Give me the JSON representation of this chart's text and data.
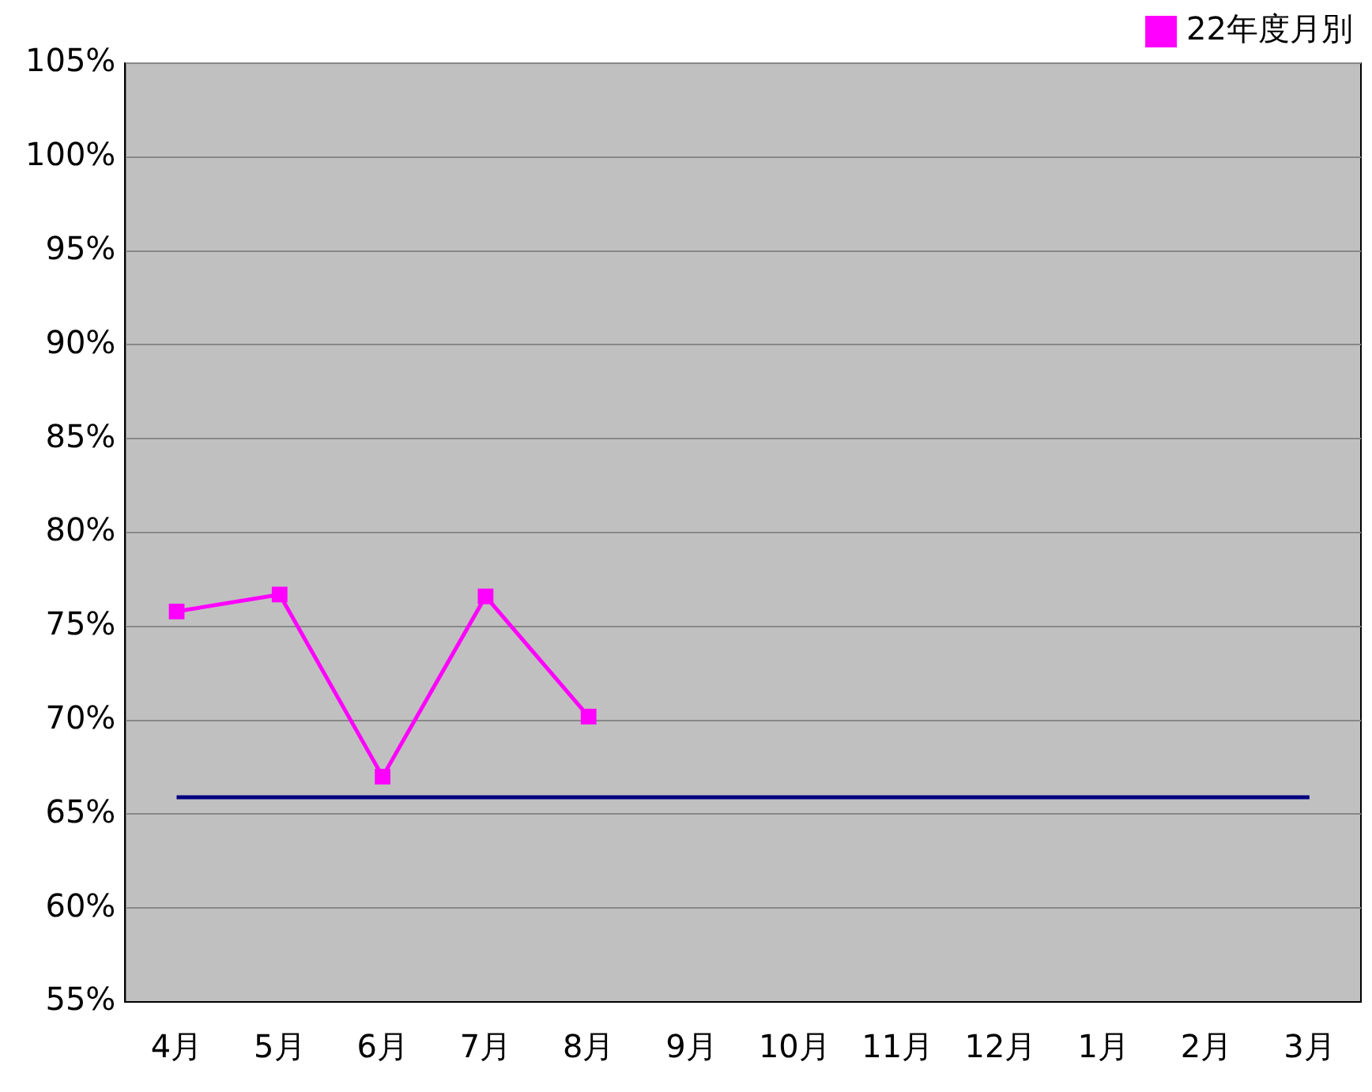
{
  "chart_data": {
    "type": "line",
    "categories": [
      "4月",
      "5月",
      "6月",
      "7月",
      "8月",
      "9月",
      "10月",
      "11月",
      "12月",
      "1月",
      "2月",
      "3月"
    ],
    "series": [
      {
        "name": "22年度月別",
        "color": "#ff00ff",
        "marker": "square",
        "values": [
          75.8,
          76.7,
          67.0,
          76.6,
          70.2,
          null,
          null,
          null,
          null,
          null,
          null,
          null
        ]
      },
      {
        "color": "#000080",
        "marker": "none",
        "values": [
          65.9,
          65.9,
          65.9,
          65.9,
          65.9,
          65.9,
          65.9,
          65.9,
          65.9,
          65.9,
          65.9,
          65.9
        ]
      }
    ],
    "ylim": [
      55,
      105
    ],
    "yticks": [
      {
        "value": 55,
        "label": "55%"
      },
      {
        "value": 60,
        "label": "60%"
      },
      {
        "value": 65,
        "label": "65%"
      },
      {
        "value": 70,
        "label": "70%"
      },
      {
        "value": 75,
        "label": "75%"
      },
      {
        "value": 80,
        "label": "80%"
      },
      {
        "value": 85,
        "label": "85%"
      },
      {
        "value": 90,
        "label": "90%"
      },
      {
        "value": 95,
        "label": "95%"
      },
      {
        "value": 100,
        "label": "100%"
      },
      {
        "value": 105,
        "label": "105%"
      }
    ],
    "grid": "y",
    "legend": "top right"
  }
}
